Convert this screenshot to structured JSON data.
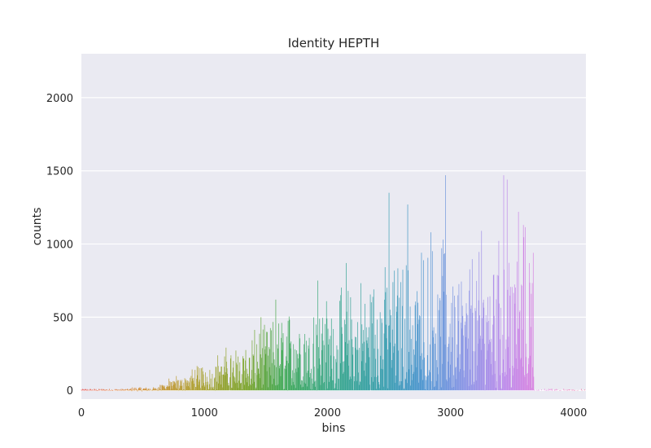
{
  "chart_data": {
    "type": "bar",
    "title": "Identity HEPTH",
    "xlabel": "bins",
    "ylabel": "counts",
    "xlim": [
      0,
      4100
    ],
    "ylim": [
      -60,
      2300
    ],
    "grid": true,
    "x_ticks": [
      0,
      1000,
      2000,
      3000,
      4000
    ],
    "y_ticks": [
      0,
      500,
      1000,
      1500,
      2000
    ],
    "color_gradient_hue": "rainbow (red to orange to olive to green to teal to blue to violet to magenta to pink)",
    "bin_range": [
      0,
      4100
    ],
    "dense_region_end": 3680,
    "prominent_bars": [
      {
        "x": 2500,
        "y": 1350
      },
      {
        "x": 2650,
        "y": 1270
      },
      {
        "x": 2960,
        "y": 1470
      },
      {
        "x": 3430,
        "y": 1470
      },
      {
        "x": 3460,
        "y": 1440
      },
      {
        "x": 3550,
        "y": 1220
      },
      {
        "x": 2940,
        "y": 1030
      },
      {
        "x": 3250,
        "y": 1090
      },
      {
        "x": 3590,
        "y": 1130
      },
      {
        "x": 2840,
        "y": 1080
      },
      {
        "x": 2150,
        "y": 870
      },
      {
        "x": 3670,
        "y": 940
      },
      {
        "x": 1920,
        "y": 750
      },
      {
        "x": 1460,
        "y": 500
      },
      {
        "x": 1580,
        "y": 620
      }
    ]
  }
}
